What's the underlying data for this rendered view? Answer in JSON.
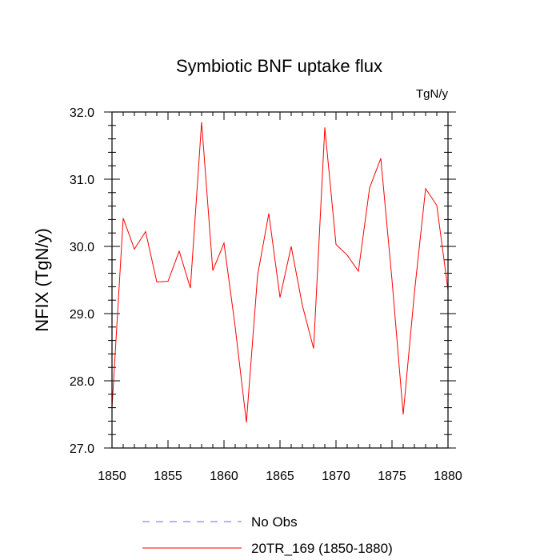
{
  "chart_data": {
    "type": "line",
    "title": "Symbiotic BNF uptake flux",
    "units": "TgN/y",
    "ylabel": "NFIX  (TgN/y)",
    "xlabel": "",
    "xlim": [
      1850,
      1880
    ],
    "ylim": [
      27.0,
      32.0
    ],
    "x_ticks": [
      1850,
      1855,
      1860,
      1865,
      1870,
      1875,
      1880
    ],
    "x_tick_labels": [
      "1850",
      "1855",
      "1860",
      "1865",
      "1870",
      "1875",
      "1880"
    ],
    "y_ticks": [
      27.0,
      28.0,
      29.0,
      30.0,
      31.0,
      32.0
    ],
    "y_tick_labels": [
      "27.0",
      "28.0",
      "29.0",
      "30.0",
      "31.0",
      "32.0"
    ],
    "series": [
      {
        "name": "20TR_169 (1850-1880)",
        "color": "#ff0000",
        "x": [
          1850,
          1851,
          1852,
          1853,
          1854,
          1855,
          1856,
          1857,
          1858,
          1859,
          1860,
          1861,
          1862,
          1863,
          1864,
          1865,
          1866,
          1867,
          1868,
          1869,
          1870,
          1871,
          1872,
          1873,
          1874,
          1875,
          1876,
          1877,
          1878,
          1879,
          1880
        ],
        "values": [
          27.6,
          30.42,
          29.96,
          30.22,
          29.47,
          29.48,
          29.93,
          29.38,
          31.85,
          29.64,
          30.05,
          28.8,
          27.38,
          29.57,
          30.49,
          29.24,
          30.0,
          29.12,
          28.48,
          31.77,
          30.03,
          29.87,
          29.63,
          30.87,
          31.31,
          29.5,
          27.5,
          29.31,
          30.86,
          30.61,
          29.35
        ]
      }
    ],
    "legend": [
      {
        "label": "No Obs",
        "color": "#6666ff",
        "style": "dashed"
      },
      {
        "label": "20TR_169 (1850-1880)",
        "color": "#ff0000",
        "style": "solid"
      }
    ],
    "legend_position": "bottom-center"
  }
}
